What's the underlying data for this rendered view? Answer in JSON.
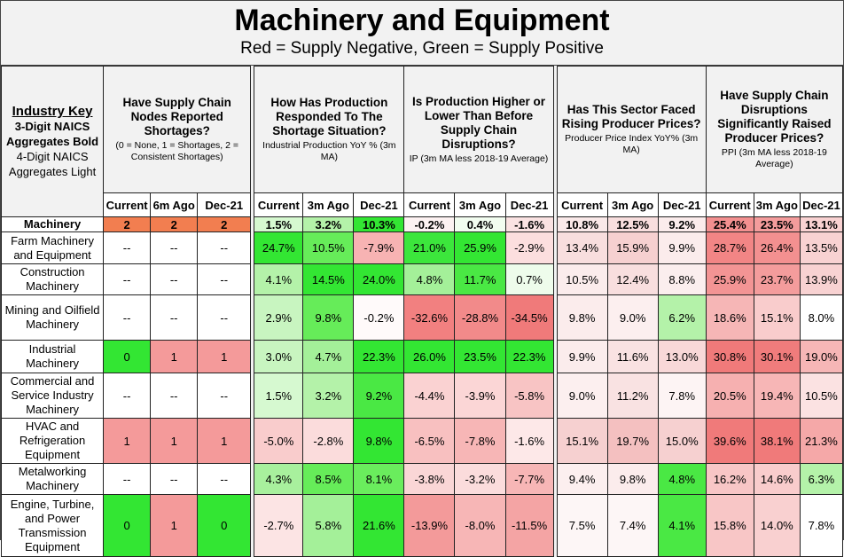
{
  "title": "Machinery and Equipment",
  "subtitle": "Red = Supply Negative, Green = Supply Positive",
  "key": {
    "line1": "Industry Key",
    "line2": "3-Digit NAICS",
    "line3": "Aggregates Bold",
    "line4": "4-Digit NAICS",
    "line5": "Aggregates Light"
  },
  "groups": [
    {
      "question": "Have Supply Chain Nodes Reported Shortages?",
      "sub": "(0 = None, 1 = Shortages, 2 = Consistent Shortages)",
      "cols": [
        "Current",
        "6m Ago",
        "Dec-21"
      ]
    },
    {
      "question": "How Has Production Responded To The Shortage Situation?",
      "sub": "Industrial Production YoY % (3m MA)",
      "cols": [
        "Current",
        "3m Ago",
        "Dec-21"
      ]
    },
    {
      "question": "Is Production Higher or Lower Than Before Supply Chain Disruptions?",
      "sub": "IP (3m MA less 2018-19 Average)",
      "cols": [
        "Current",
        "3m Ago",
        "Dec-21"
      ]
    },
    {
      "question": "Has This Sector Faced Rising Producer Prices?",
      "sub": "Producer Price Index YoY% (3m MA)",
      "cols": [
        "Current",
        "3m Ago",
        "Dec-21"
      ]
    },
    {
      "question": "Have Supply Chain Disruptions Significantly Raised Producer Prices?",
      "sub": "PPI (3m MA less 2018-19 Average)",
      "cols": [
        "Current",
        "3m Ago",
        "Dec-21"
      ]
    }
  ],
  "colors": {
    "header_bg": "#f2f2f2",
    "shortage_2": "#f27e50",
    "red_strong": "#f07a7a",
    "green_strong": "#33e633"
  },
  "rows": [
    {
      "label": "Machinery",
      "bold": true,
      "values": [
        "2",
        "2",
        "2",
        "1.5%",
        "3.2%",
        "10.3%",
        "-0.2%",
        "0.4%",
        "-1.6%",
        "10.8%",
        "12.5%",
        "9.2%",
        "25.4%",
        "23.5%",
        "13.1%"
      ],
      "colors": [
        "#f27e50",
        "#f27e50",
        "#f27e50",
        "#d6f9d0",
        "#b4f2a9",
        "#33e633",
        "#fdf2f2",
        "#f2fdf0",
        "#fae2e2",
        "#fae9e9",
        "#f8dede",
        "#fbecec",
        "#f39090",
        "#f49c9c",
        "#f9d2d2"
      ]
    },
    {
      "label": "Farm Machinery and Equipment",
      "bold": false,
      "values": [
        "--",
        "--",
        "--",
        "24.7%",
        "10.5%",
        "-7.9%",
        "21.0%",
        "25.9%",
        "-2.9%",
        "13.4%",
        "15.9%",
        "9.9%",
        "28.7%",
        "26.4%",
        "13.5%"
      ],
      "colors": [
        "#ffffff",
        "#ffffff",
        "#ffffff",
        "#33e633",
        "#66ec59",
        "#f7b3b3",
        "#3ce63c",
        "#33e633",
        "#fcdede",
        "#f8dede",
        "#f6d0d0",
        "#fbecec",
        "#f28585",
        "#f39090",
        "#f8d2d2"
      ]
    },
    {
      "label": "Construction Machinery",
      "bold": false,
      "values": [
        "--",
        "--",
        "--",
        "4.1%",
        "14.5%",
        "24.0%",
        "4.8%",
        "11.7%",
        "0.7%",
        "10.5%",
        "12.4%",
        "8.8%",
        "25.9%",
        "23.7%",
        "13.9%"
      ],
      "colors": [
        "#ffffff",
        "#ffffff",
        "#ffffff",
        "#b4f2a9",
        "#33e633",
        "#33e633",
        "#a4f099",
        "#4ae844",
        "#eefceb",
        "#fbecec",
        "#f8dede",
        "#fbeeee",
        "#f39494",
        "#f49c9c",
        "#f8d2d2"
      ]
    },
    {
      "label": "Mining and Oilfield Machinery",
      "bold": false,
      "values": [
        "--",
        "--",
        "--",
        "2.9%",
        "9.8%",
        "-0.2%",
        "-32.6%",
        "-28.8%",
        "-34.5%",
        "9.8%",
        "9.0%",
        "6.2%",
        "18.6%",
        "15.1%",
        "8.0%"
      ],
      "colors": [
        "#ffffff",
        "#ffffff",
        "#ffffff",
        "#c8f5c0",
        "#66ec59",
        "#fffafa",
        "#f28080",
        "#f28a8a",
        "#f07a7a",
        "#fbecec",
        "#fcefef",
        "#b4f2a9",
        "#f6b6b6",
        "#f9cccc",
        "#ffffff"
      ]
    },
    {
      "label": "Industrial Machinery",
      "bold": false,
      "values": [
        "0",
        "1",
        "1",
        "3.0%",
        "4.7%",
        "22.3%",
        "26.0%",
        "23.5%",
        "22.3%",
        "9.9%",
        "11.6%",
        "13.0%",
        "30.8%",
        "30.1%",
        "19.0%"
      ],
      "colors": [
        "#33e633",
        "#f49a9a",
        "#f49a9a",
        "#c8f5c0",
        "#a4f099",
        "#33e633",
        "#33e633",
        "#33e633",
        "#33e633",
        "#fbecec",
        "#f9e2e2",
        "#f8d8d8",
        "#f07a7a",
        "#f07c7c",
        "#f6b6b6"
      ]
    },
    {
      "label": "Commercial and Service Industry Machinery",
      "bold": false,
      "values": [
        "--",
        "--",
        "--",
        "1.5%",
        "3.2%",
        "9.2%",
        "-4.4%",
        "-3.9%",
        "-5.8%",
        "9.0%",
        "11.2%",
        "7.8%",
        "20.5%",
        "19.4%",
        "10.5%"
      ],
      "colors": [
        "#ffffff",
        "#ffffff",
        "#ffffff",
        "#d6f9d0",
        "#b4f2a9",
        "#4ae844",
        "#fad2d2",
        "#fbd6d6",
        "#f8c4c4",
        "#fcefef",
        "#f9e2e2",
        "#fdf4f4",
        "#f6b0b0",
        "#f7b6b6",
        "#fbe2e2"
      ]
    },
    {
      "label": "HVAC and Refrigeration Equipment",
      "bold": false,
      "values": [
        "1",
        "1",
        "1",
        "-5.0%",
        "-2.8%",
        "9.8%",
        "-6.5%",
        "-7.8%",
        "-1.6%",
        "15.1%",
        "19.7%",
        "15.0%",
        "39.6%",
        "38.1%",
        "21.3%"
      ],
      "colors": [
        "#f49a9a",
        "#f49a9a",
        "#f49a9a",
        "#f9cccc",
        "#fbdcdc",
        "#33e633",
        "#f8c0c0",
        "#f7b6b6",
        "#fde8e8",
        "#f6d0d0",
        "#f4c0c0",
        "#f6d0d0",
        "#f07a7a",
        "#f07a7a",
        "#f5a8a8"
      ]
    },
    {
      "label": "Metalworking Machinery",
      "bold": false,
      "values": [
        "--",
        "--",
        "--",
        "4.3%",
        "8.5%",
        "8.1%",
        "-3.8%",
        "-3.2%",
        "-7.7%",
        "9.4%",
        "9.8%",
        "4.8%",
        "16.2%",
        "14.6%",
        "6.3%"
      ],
      "colors": [
        "#ffffff",
        "#ffffff",
        "#ffffff",
        "#a8f09d",
        "#66ec59",
        "#6aed5d",
        "#fad6d6",
        "#fbdcdc",
        "#f7b6b6",
        "#fcefef",
        "#fbecec",
        "#4ae844",
        "#f8c6c6",
        "#f9cccc",
        "#b4f2a9"
      ]
    },
    {
      "label": "Engine, Turbine, and Power Transmission Equipment",
      "bold": false,
      "values": [
        "0",
        "1",
        "0",
        "-2.7%",
        "5.8%",
        "21.6%",
        "-13.9%",
        "-8.0%",
        "-11.5%",
        "7.5%",
        "7.4%",
        "4.1%",
        "15.8%",
        "14.0%",
        "7.8%"
      ],
      "colors": [
        "#33e633",
        "#f49a9a",
        "#33e633",
        "#fce4e4",
        "#a4f099",
        "#33e633",
        "#f39a9a",
        "#f7b6b6",
        "#f4a4a4",
        "#fdf6f6",
        "#fdf6f6",
        "#4ae844",
        "#f8c6c6",
        "#f9d0d0",
        "#ffffff"
      ]
    }
  ]
}
